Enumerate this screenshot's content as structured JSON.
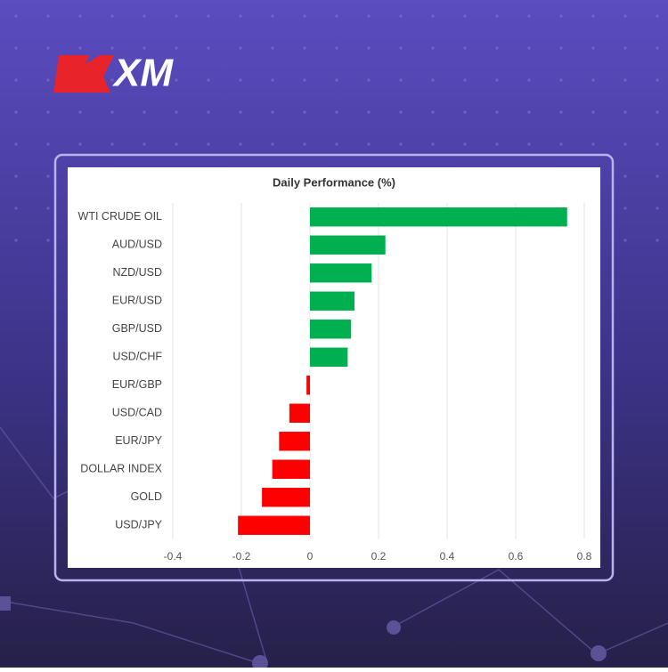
{
  "logo": "XM",
  "chart_data": {
    "type": "bar",
    "orientation": "horizontal",
    "title": "Daily Performance (%)",
    "categories": [
      "WTI CRUDE OIL",
      "AUD/USD",
      "NZD/USD",
      "EUR/USD",
      "GBP/USD",
      "USD/CHF",
      "EUR/GBP",
      "USD/CAD",
      "EUR/JPY",
      "DOLLAR INDEX",
      "GOLD",
      "USD/JPY"
    ],
    "values": [
      0.75,
      0.22,
      0.18,
      0.13,
      0.12,
      0.11,
      -0.01,
      -0.06,
      -0.09,
      -0.11,
      -0.14,
      -0.21
    ],
    "colors": [
      "#00b050",
      "#00b050",
      "#00b050",
      "#00b050",
      "#00b050",
      "#00b050",
      "#ff0000",
      "#ff0000",
      "#ff0000",
      "#ff0000",
      "#ff0000",
      "#ff0000"
    ],
    "xlim": [
      -0.4,
      0.8
    ],
    "xticks": [
      -0.4,
      -0.2,
      0,
      0.2,
      0.4,
      0.6,
      0.8
    ],
    "grid": true
  }
}
